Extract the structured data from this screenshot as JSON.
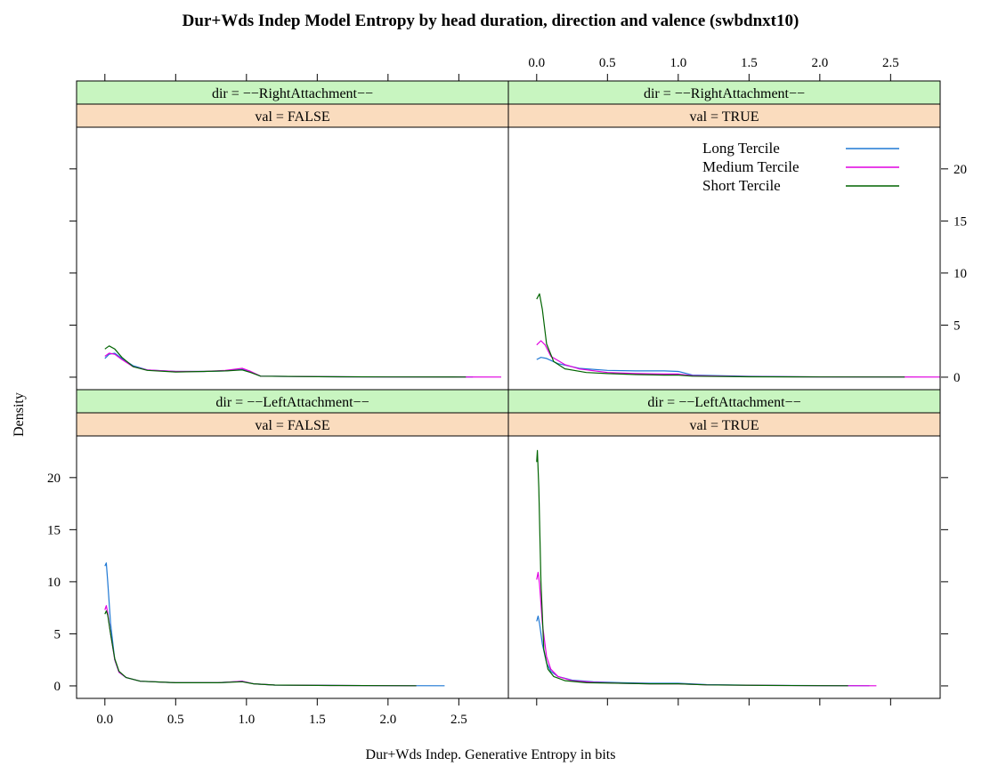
{
  "chart_data": {
    "type": "line",
    "title": "Dur+Wds Indep Model Entropy by head duration, direction and valence (swbdnxt10)",
    "xlabel": "Dur+Wds Indep. Generative Entropy in bits",
    "ylabel": "Density",
    "xlim": [
      -0.2,
      2.85
    ],
    "ylim": [
      -1.2,
      24
    ],
    "x_ticks": [
      "0.0",
      "0.5",
      "1.0",
      "1.5",
      "2.0",
      "2.5"
    ],
    "y_ticks": [
      "0",
      "5",
      "10",
      "15",
      "20"
    ],
    "strip_colors": {
      "dir": "#c8f5c0",
      "val": "#fadcbe"
    },
    "legend": {
      "position": "top-right",
      "entries": [
        {
          "name": "Long Tercile",
          "color": "#1f78d4"
        },
        {
          "name": "Medium Tercile",
          "color": "#e000e0"
        },
        {
          "name": "Short Tercile",
          "color": "#006400"
        }
      ]
    },
    "panels": [
      {
        "dir": "dir = −−RightAttachment−−",
        "val": "val = FALSE",
        "series": [
          {
            "name": "Long Tercile",
            "color": "#1f78d4",
            "points": [
              [
                0,
                1.8
              ],
              [
                0.03,
                2.2
              ],
              [
                0.07,
                2.3
              ],
              [
                0.12,
                1.8
              ],
              [
                0.2,
                1.1
              ],
              [
                0.3,
                0.7
              ],
              [
                0.5,
                0.55
              ],
              [
                0.7,
                0.55
              ],
              [
                0.85,
                0.6
              ],
              [
                0.97,
                0.75
              ],
              [
                1.03,
                0.5
              ],
              [
                1.1,
                0.1
              ],
              [
                1.5,
                0.05
              ],
              [
                2.0,
                0.02
              ],
              [
                2.6,
                0.01
              ]
            ]
          },
          {
            "name": "Medium Tercile",
            "color": "#e000e0",
            "points": [
              [
                0,
                2.0
              ],
              [
                0.03,
                2.3
              ],
              [
                0.07,
                2.2
              ],
              [
                0.12,
                1.7
              ],
              [
                0.2,
                1.0
              ],
              [
                0.3,
                0.7
              ],
              [
                0.5,
                0.55
              ],
              [
                0.7,
                0.55
              ],
              [
                0.85,
                0.65
              ],
              [
                0.97,
                0.85
              ],
              [
                1.03,
                0.55
              ],
              [
                1.1,
                0.1
              ],
              [
                1.5,
                0.05
              ],
              [
                2.0,
                0.02
              ],
              [
                2.8,
                0.01
              ]
            ]
          },
          {
            "name": "Short Tercile",
            "color": "#006400",
            "points": [
              [
                0,
                2.7
              ],
              [
                0.03,
                3.0
              ],
              [
                0.07,
                2.7
              ],
              [
                0.12,
                1.9
              ],
              [
                0.2,
                1.0
              ],
              [
                0.3,
                0.65
              ],
              [
                0.5,
                0.5
              ],
              [
                0.7,
                0.55
              ],
              [
                0.85,
                0.6
              ],
              [
                0.97,
                0.7
              ],
              [
                1.03,
                0.45
              ],
              [
                1.1,
                0.1
              ],
              [
                1.5,
                0.05
              ],
              [
                2.0,
                0.02
              ],
              [
                2.55,
                0.01
              ]
            ]
          }
        ]
      },
      {
        "dir": "dir = −−RightAttachment−−",
        "val": "val = TRUE",
        "series": [
          {
            "name": "Long Tercile",
            "color": "#1f78d4",
            "points": [
              [
                0,
                1.7
              ],
              [
                0.03,
                1.9
              ],
              [
                0.07,
                1.8
              ],
              [
                0.15,
                1.3
              ],
              [
                0.3,
                0.85
              ],
              [
                0.5,
                0.65
              ],
              [
                0.7,
                0.6
              ],
              [
                0.9,
                0.6
              ],
              [
                1.0,
                0.55
              ],
              [
                1.1,
                0.2
              ],
              [
                1.5,
                0.08
              ],
              [
                2.0,
                0.03
              ],
              [
                2.6,
                0.01
              ]
            ]
          },
          {
            "name": "Medium Tercile",
            "color": "#e000e0",
            "points": [
              [
                0,
                3.1
              ],
              [
                0.03,
                3.5
              ],
              [
                0.06,
                3.1
              ],
              [
                0.1,
                2.0
              ],
              [
                0.2,
                1.2
              ],
              [
                0.3,
                0.8
              ],
              [
                0.5,
                0.45
              ],
              [
                0.7,
                0.35
              ],
              [
                0.9,
                0.3
              ],
              [
                1.0,
                0.3
              ],
              [
                1.1,
                0.15
              ],
              [
                1.5,
                0.06
              ],
              [
                2.0,
                0.03
              ],
              [
                2.85,
                0.01
              ]
            ]
          },
          {
            "name": "Short Tercile",
            "color": "#006400",
            "points": [
              [
                0,
                7.5
              ],
              [
                0.02,
                8.0
              ],
              [
                0.04,
                6.5
              ],
              [
                0.07,
                3.2
              ],
              [
                0.12,
                1.5
              ],
              [
                0.2,
                0.8
              ],
              [
                0.35,
                0.45
              ],
              [
                0.5,
                0.35
              ],
              [
                0.7,
                0.25
              ],
              [
                0.9,
                0.2
              ],
              [
                1.0,
                0.2
              ],
              [
                1.1,
                0.1
              ],
              [
                1.5,
                0.04
              ],
              [
                2.0,
                0.02
              ],
              [
                2.6,
                0.01
              ]
            ]
          }
        ]
      },
      {
        "dir": "dir = −−LeftAttachment−−",
        "val": "val = FALSE",
        "series": [
          {
            "name": "Long Tercile",
            "color": "#1f78d4",
            "points": [
              [
                0,
                11.5
              ],
              [
                0.01,
                11.8
              ],
              [
                0.02,
                10.0
              ],
              [
                0.04,
                6.0
              ],
              [
                0.07,
                2.5
              ],
              [
                0.1,
                1.3
              ],
              [
                0.15,
                0.8
              ],
              [
                0.25,
                0.45
              ],
              [
                0.5,
                0.3
              ],
              [
                0.8,
                0.3
              ],
              [
                0.97,
                0.45
              ],
              [
                1.05,
                0.2
              ],
              [
                1.2,
                0.08
              ],
              [
                1.6,
                0.05
              ],
              [
                2.0,
                0.02
              ],
              [
                2.4,
                0.01
              ]
            ]
          },
          {
            "name": "Medium Tercile",
            "color": "#e000e0",
            "points": [
              [
                0,
                7.3
              ],
              [
                0.01,
                7.7
              ],
              [
                0.02,
                7.0
              ],
              [
                0.04,
                5.0
              ],
              [
                0.07,
                2.5
              ],
              [
                0.1,
                1.3
              ],
              [
                0.15,
                0.8
              ],
              [
                0.25,
                0.45
              ],
              [
                0.5,
                0.3
              ],
              [
                0.8,
                0.3
              ],
              [
                0.97,
                0.45
              ],
              [
                1.05,
                0.2
              ],
              [
                1.2,
                0.08
              ],
              [
                1.6,
                0.04
              ],
              [
                2.0,
                0.02
              ],
              [
                2.2,
                0.01
              ]
            ]
          },
          {
            "name": "Short Tercile",
            "color": "#006400",
            "points": [
              [
                0,
                6.9
              ],
              [
                0.01,
                7.2
              ],
              [
                0.02,
                6.8
              ],
              [
                0.04,
                5.0
              ],
              [
                0.07,
                2.6
              ],
              [
                0.1,
                1.4
              ],
              [
                0.15,
                0.8
              ],
              [
                0.25,
                0.45
              ],
              [
                0.5,
                0.3
              ],
              [
                0.8,
                0.3
              ],
              [
                0.97,
                0.4
              ],
              [
                1.05,
                0.2
              ],
              [
                1.2,
                0.08
              ],
              [
                1.6,
                0.04
              ],
              [
                2.0,
                0.02
              ],
              [
                2.2,
                0.01
              ]
            ]
          }
        ]
      },
      {
        "dir": "dir = −−LeftAttachment−−",
        "val": "val = TRUE",
        "series": [
          {
            "name": "Long Tercile",
            "color": "#1f78d4",
            "points": [
              [
                0,
                6.2
              ],
              [
                0.01,
                6.7
              ],
              [
                0.02,
                6.0
              ],
              [
                0.04,
                4.0
              ],
              [
                0.07,
                2.2
              ],
              [
                0.1,
                1.4
              ],
              [
                0.15,
                0.9
              ],
              [
                0.25,
                0.55
              ],
              [
                0.4,
                0.4
              ],
              [
                0.6,
                0.3
              ],
              [
                0.8,
                0.25
              ],
              [
                1.0,
                0.25
              ],
              [
                1.2,
                0.12
              ],
              [
                1.6,
                0.06
              ],
              [
                2.0,
                0.03
              ],
              [
                2.35,
                0.01
              ]
            ]
          },
          {
            "name": "Medium Tercile",
            "color": "#e000e0",
            "points": [
              [
                0,
                10.2
              ],
              [
                0.01,
                10.9
              ],
              [
                0.02,
                9.8
              ],
              [
                0.04,
                6.0
              ],
              [
                0.07,
                2.8
              ],
              [
                0.1,
                1.6
              ],
              [
                0.15,
                0.9
              ],
              [
                0.25,
                0.5
              ],
              [
                0.4,
                0.35
              ],
              [
                0.6,
                0.25
              ],
              [
                0.8,
                0.2
              ],
              [
                1.0,
                0.2
              ],
              [
                1.2,
                0.1
              ],
              [
                1.6,
                0.05
              ],
              [
                2.0,
                0.02
              ],
              [
                2.4,
                0.01
              ]
            ]
          },
          {
            "name": "Short Tercile",
            "color": "#006400",
            "points": [
              [
                0,
                21.5
              ],
              [
                0.005,
                22.6
              ],
              [
                0.015,
                19.0
              ],
              [
                0.03,
                10.0
              ],
              [
                0.05,
                3.5
              ],
              [
                0.08,
                1.6
              ],
              [
                0.12,
                0.9
              ],
              [
                0.2,
                0.5
              ],
              [
                0.35,
                0.3
              ],
              [
                0.6,
                0.25
              ],
              [
                0.8,
                0.2
              ],
              [
                1.0,
                0.2
              ],
              [
                1.2,
                0.1
              ],
              [
                1.6,
                0.05
              ],
              [
                2.0,
                0.02
              ],
              [
                2.2,
                0.01
              ]
            ]
          }
        ]
      }
    ]
  }
}
